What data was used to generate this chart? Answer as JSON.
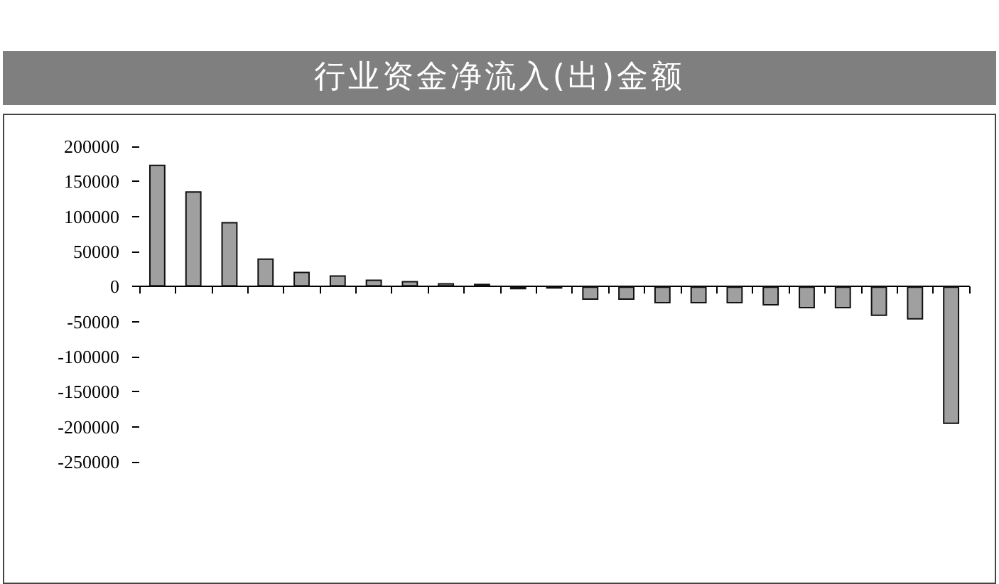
{
  "chart_data": {
    "type": "bar",
    "title": "行业资金净流入(出)金额",
    "categories": [
      null,
      null,
      null,
      null,
      null,
      null,
      null,
      null,
      null,
      null,
      null,
      null,
      null,
      null,
      null,
      null,
      null,
      null,
      null,
      null,
      null,
      null,
      null
    ],
    "values": [
      174000,
      136000,
      92000,
      40000,
      21000,
      16000,
      10000,
      8000,
      5000,
      4000,
      -4000,
      -3000,
      -19000,
      -19000,
      -24000,
      -24000,
      -24000,
      -27000,
      -31000,
      -31000,
      -42000,
      -47000,
      -196000
    ],
    "color": "#a0a0a0",
    "ylim": [
      -250000,
      200000
    ],
    "yticks": [
      -250000,
      -200000,
      -150000,
      -100000,
      -50000,
      0,
      50000,
      100000,
      150000,
      200000
    ],
    "data_labels": false
  }
}
